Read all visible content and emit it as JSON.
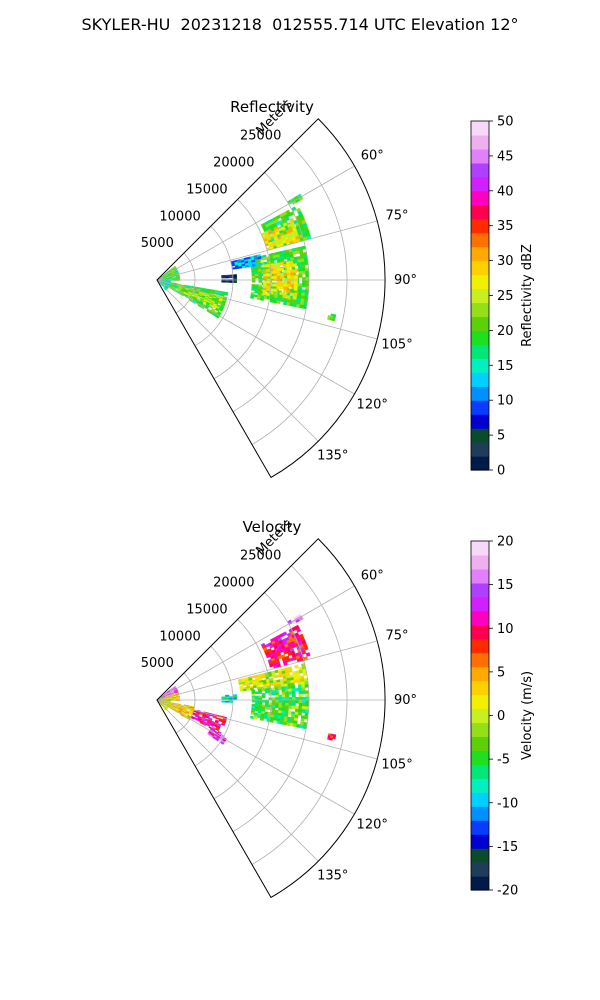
{
  "figure_title": "SKYLER-HU  20231218  012555.714 UTC Elevation 12°",
  "chart_data": [
    {
      "type": "heatmap",
      "projection": "polar-sector",
      "title": "Reflectivity",
      "range_label": "Meters",
      "range_max": 30000,
      "range_ticks": [
        5000,
        10000,
        15000,
        20000,
        25000
      ],
      "range_tick_labels": [
        "5000",
        "10000",
        "15000",
        "20000",
        "25000"
      ],
      "azimuth_range_deg": [
        45,
        150
      ],
      "azimuth_ticks_deg": [
        60,
        75,
        90,
        105,
        120,
        135
      ],
      "azimuth_tick_labels": [
        "60°",
        "75°",
        "90°",
        "105°",
        "120°",
        "135°"
      ],
      "grid": true,
      "colorbar": {
        "label": "Reflectivity dBZ",
        "min": 0,
        "max": 50,
        "ticks": [
          0,
          5,
          10,
          15,
          20,
          25,
          30,
          35,
          40,
          45,
          50
        ],
        "tick_labels": [
          "0",
          "5",
          "10",
          "15",
          "20",
          "25",
          "30",
          "35",
          "40",
          "45",
          "50"
        ],
        "colors": [
          "#021a4a",
          "#1f3d5a",
          "#0b4a2c",
          "#0000d0",
          "#0a3cff",
          "#0090ff",
          "#00d0ff",
          "#00f0c0",
          "#00e878",
          "#1fe01f",
          "#5cd10a",
          "#94df18",
          "#c8ef20",
          "#f0f000",
          "#ffd000",
          "#ffaa00",
          "#ff7000",
          "#ff2a00",
          "#ff0050",
          "#ff00c0",
          "#d020ff",
          "#b040ff",
          "#e080ff",
          "#f0b0f0",
          "#f8d8f8"
        ]
      },
      "echo_regions": [
        {
          "az": [
            52,
            92
          ],
          "range": [
            200,
            3000
          ],
          "value": 20
        },
        {
          "az": [
            92,
            140
          ],
          "range": [
            200,
            1800
          ],
          "value": 16
        },
        {
          "az": [
            100,
            122
          ],
          "range": [
            1800,
            9500
          ],
          "value": 19
        },
        {
          "az": [
            104,
            116
          ],
          "range": [
            3000,
            9500
          ],
          "value": 23
        },
        {
          "az": [
            62,
            75
          ],
          "range": [
            15500,
            21000
          ],
          "value": 19
        },
        {
          "az": [
            66,
            75
          ],
          "range": [
            15000,
            19500
          ],
          "value": 28
        },
        {
          "az": [
            77,
            101
          ],
          "range": [
            12500,
            20000
          ],
          "value": 20
        },
        {
          "az": [
            82,
            98
          ],
          "range": [
            14000,
            18500
          ],
          "value": 28
        },
        {
          "az": [
            76,
            82
          ],
          "range": [
            10000,
            14000
          ],
          "value": 12
        },
        {
          "az": [
            86,
            92
          ],
          "range": [
            8500,
            10500
          ],
          "value": 4
        },
        {
          "az": [
            59,
            61
          ],
          "range": [
            20000,
            22000
          ],
          "value": 19
        },
        {
          "az": [
            101,
            103
          ],
          "range": [
            23000,
            24000
          ],
          "value": 20
        }
      ]
    },
    {
      "type": "heatmap",
      "projection": "polar-sector",
      "title": "Velocity",
      "range_label": "Meters",
      "range_max": 30000,
      "range_ticks": [
        5000,
        10000,
        15000,
        20000,
        25000
      ],
      "range_tick_labels": [
        "5000",
        "10000",
        "15000",
        "20000",
        "25000"
      ],
      "azimuth_range_deg": [
        45,
        150
      ],
      "azimuth_ticks_deg": [
        60,
        75,
        90,
        105,
        120,
        135
      ],
      "azimuth_tick_labels": [
        "60°",
        "75°",
        "90°",
        "105°",
        "120°",
        "135°"
      ],
      "grid": true,
      "colorbar": {
        "label": "Velocity (m/s)",
        "min": -20,
        "max": 20,
        "ticks": [
          -20,
          -15,
          -10,
          -5,
          0,
          5,
          10,
          15,
          20
        ],
        "tick_labels": [
          "-20",
          "-15",
          "-10",
          "-5",
          "0",
          "5",
          "10",
          "15",
          "20"
        ],
        "colors": [
          "#021a4a",
          "#1f3d5a",
          "#0b4a2c",
          "#0000d0",
          "#0a3cff",
          "#0090ff",
          "#00d0ff",
          "#00f0c0",
          "#00e878",
          "#1fe01f",
          "#5cd10a",
          "#94df18",
          "#c8ef20",
          "#f0f000",
          "#ffd000",
          "#ffaa00",
          "#ff7000",
          "#ff2a00",
          "#ff0050",
          "#ff00c0",
          "#d020ff",
          "#b040ff",
          "#e080ff",
          "#f0b0f0",
          "#f8d8f8"
        ]
      },
      "echo_regions": [
        {
          "az": [
            52,
            70
          ],
          "range": [
            200,
            3000
          ],
          "value": 14
        },
        {
          "az": [
            70,
            92
          ],
          "range": [
            200,
            3000
          ],
          "value": 3
        },
        {
          "az": [
            92,
            140
          ],
          "range": [
            200,
            1800
          ],
          "value": 1
        },
        {
          "az": [
            100,
            122
          ],
          "range": [
            1800,
            5000
          ],
          "value": 3
        },
        {
          "az": [
            104,
            118
          ],
          "range": [
            5000,
            9500
          ],
          "value": 11
        },
        {
          "az": [
            118,
            124
          ],
          "range": [
            8000,
            10500
          ],
          "value": 13
        },
        {
          "az": [
            62,
            75
          ],
          "range": [
            15500,
            21000
          ],
          "value": 10
        },
        {
          "az": [
            76,
            84
          ],
          "range": [
            11000,
            20000
          ],
          "value": 0
        },
        {
          "az": [
            84,
            101
          ],
          "range": [
            12500,
            20000
          ],
          "value": -4
        },
        {
          "az": [
            86,
            92
          ],
          "range": [
            8500,
            10500
          ],
          "value": -8
        },
        {
          "az": [
            59,
            61
          ],
          "range": [
            20000,
            22000
          ],
          "value": 16
        },
        {
          "az": [
            101,
            103
          ],
          "range": [
            23000,
            24000
          ],
          "value": 9
        }
      ]
    }
  ]
}
